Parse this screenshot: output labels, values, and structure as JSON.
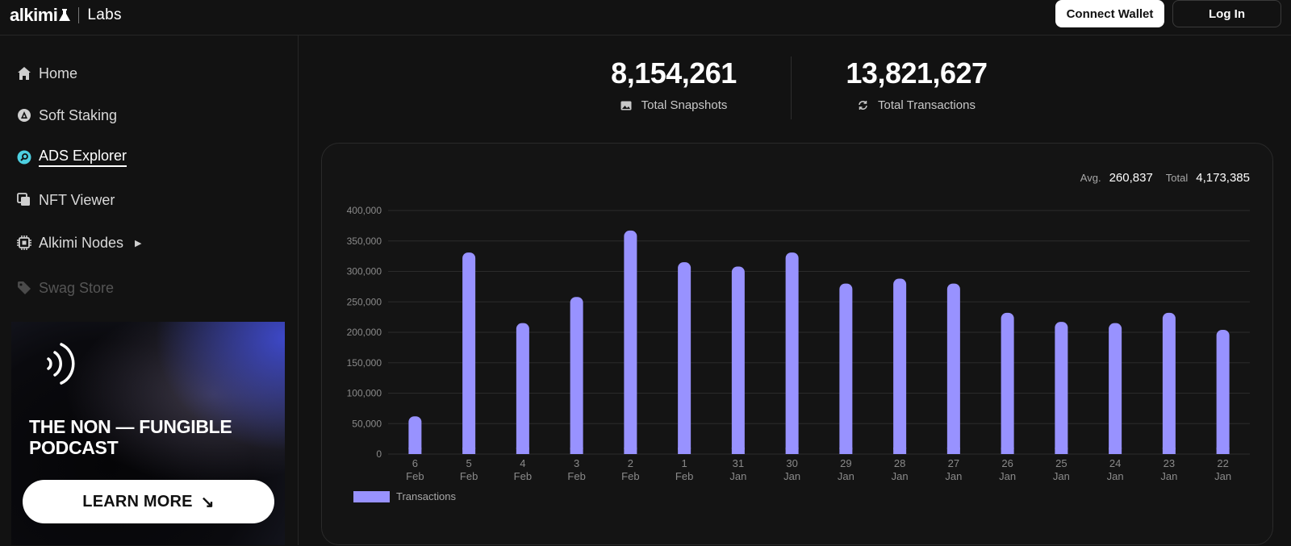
{
  "brand": {
    "name": "alkimi",
    "sub": "Labs"
  },
  "header": {
    "connect_label": "Connect Wallet",
    "login_label": "Log In"
  },
  "sidebar": {
    "items": [
      {
        "label": "Home",
        "icon": "home-icon"
      },
      {
        "label": "Soft Staking",
        "icon": "staking-icon"
      },
      {
        "label": "ADS Explorer",
        "icon": "explorer-icon",
        "active": true
      },
      {
        "label": "NFT Viewer",
        "icon": "nft-icon"
      },
      {
        "label": "Alkimi Nodes",
        "icon": "chip-icon"
      },
      {
        "label": "Swag Store",
        "icon": "tag-icon",
        "disabled": true
      }
    ]
  },
  "promo": {
    "title": "THE NON — FUNGIBLE PODCAST",
    "button_label": "LEARN MORE",
    "arrow": "↘"
  },
  "stats": {
    "snapshots": {
      "value": "8,154,261",
      "label": "Total Snapshots"
    },
    "transactions": {
      "value": "13,821,627",
      "label": "Total Transactions"
    }
  },
  "summary": {
    "avg_label": "Avg.",
    "avg_value": "260,837",
    "total_label": "Total",
    "total_value": "4,173,385"
  },
  "colors": {
    "bar": "#9892ff",
    "accent": "#4dd0e1",
    "background": "#121212"
  },
  "chart_data": {
    "type": "bar",
    "categories": [
      [
        "6",
        "Feb"
      ],
      [
        "5",
        "Feb"
      ],
      [
        "4",
        "Feb"
      ],
      [
        "3",
        "Feb"
      ],
      [
        "2",
        "Feb"
      ],
      [
        "1",
        "Feb"
      ],
      [
        "31",
        "Jan"
      ],
      [
        "30",
        "Jan"
      ],
      [
        "29",
        "Jan"
      ],
      [
        "28",
        "Jan"
      ],
      [
        "27",
        "Jan"
      ],
      [
        "26",
        "Jan"
      ],
      [
        "25",
        "Jan"
      ],
      [
        "24",
        "Jan"
      ],
      [
        "23",
        "Jan"
      ],
      [
        "22",
        "Jan"
      ]
    ],
    "series": [
      {
        "name": "Transactions",
        "values": [
          62000,
          331000,
          215000,
          258000,
          367000,
          315000,
          308000,
          331000,
          280000,
          288000,
          280000,
          232000,
          217000,
          215000,
          232000,
          204000
        ]
      }
    ],
    "ylim": [
      0,
      400000
    ],
    "yticks": [
      "400,000",
      "350,000",
      "300,000",
      "250,000",
      "200,000",
      "150,000",
      "100,000",
      "50,000",
      "0"
    ],
    "grid": true,
    "legend": "bottom-left"
  }
}
